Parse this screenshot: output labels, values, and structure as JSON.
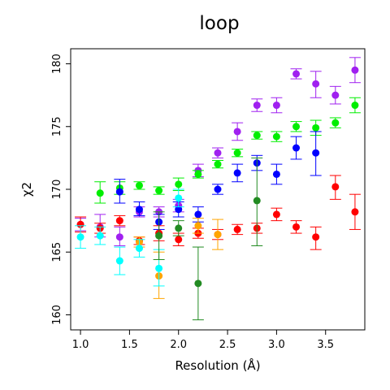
{
  "chart_data": {
    "type": "scatter",
    "title": "loop",
    "xlabel": "Resolution (Å)",
    "ylabel": "χ2",
    "xlim": [
      0.9,
      3.9
    ],
    "ylim": [
      158.8,
      181.2
    ],
    "xticks": [
      "1.0",
      "1.5",
      "2.0",
      "2.5",
      "3.0",
      "3.5"
    ],
    "xtick_values": [
      1.0,
      1.5,
      2.0,
      2.5,
      3.0,
      3.5
    ],
    "yticks": [
      "160",
      "165",
      "170",
      "175",
      "180"
    ],
    "ytick_values": [
      160,
      165,
      170,
      175,
      180
    ],
    "grid": false,
    "error_bars": true,
    "series": [
      {
        "color": "#a020f0",
        "points": [
          {
            "x": 1.0,
            "y": 167.2,
            "lo": 166.7,
            "hi": 167.7
          },
          {
            "x": 1.2,
            "y": 167.0,
            "lo": 166.2,
            "hi": 168.0
          },
          {
            "x": 1.4,
            "y": 166.2,
            "lo": 165.5,
            "hi": 167.0
          },
          {
            "x": 1.6,
            "y": 168.2,
            "lo": 167.8,
            "hi": 168.6
          },
          {
            "x": 1.8,
            "y": 168.2,
            "lo": 167.8,
            "hi": 168.6
          },
          {
            "x": 2.0,
            "y": 168.7,
            "lo": 168.2,
            "hi": 169.2
          },
          {
            "x": 2.2,
            "y": 171.5,
            "lo": 171.0,
            "hi": 172.0
          },
          {
            "x": 2.4,
            "y": 172.9,
            "lo": 172.5,
            "hi": 173.3
          },
          {
            "x": 2.6,
            "y": 174.6,
            "lo": 173.9,
            "hi": 175.3
          },
          {
            "x": 2.8,
            "y": 176.7,
            "lo": 176.2,
            "hi": 177.2
          },
          {
            "x": 3.0,
            "y": 176.7,
            "lo": 176.1,
            "hi": 177.3
          },
          {
            "x": 3.2,
            "y": 179.2,
            "lo": 178.8,
            "hi": 179.6
          },
          {
            "x": 3.4,
            "y": 178.4,
            "lo": 177.3,
            "hi": 179.4
          },
          {
            "x": 3.6,
            "y": 177.5,
            "lo": 176.8,
            "hi": 178.2
          },
          {
            "x": 3.8,
            "y": 179.5,
            "lo": 178.5,
            "hi": 180.5
          }
        ]
      },
      {
        "color": "#00ee00",
        "points": [
          {
            "x": 1.2,
            "y": 169.7,
            "lo": 168.9,
            "hi": 170.6
          },
          {
            "x": 1.4,
            "y": 170.1,
            "lo": 169.6,
            "hi": 170.6
          },
          {
            "x": 1.6,
            "y": 170.3,
            "lo": 170.0,
            "hi": 170.6
          },
          {
            "x": 1.8,
            "y": 169.9,
            "lo": 169.6,
            "hi": 170.2
          },
          {
            "x": 2.0,
            "y": 170.4,
            "lo": 169.9,
            "hi": 170.9
          },
          {
            "x": 2.2,
            "y": 171.2,
            "lo": 170.9,
            "hi": 171.5
          },
          {
            "x": 2.4,
            "y": 172.0,
            "lo": 171.7,
            "hi": 172.3
          },
          {
            "x": 2.6,
            "y": 172.9,
            "lo": 172.6,
            "hi": 173.2
          },
          {
            "x": 2.8,
            "y": 174.3,
            "lo": 174.0,
            "hi": 174.6
          },
          {
            "x": 3.0,
            "y": 174.2,
            "lo": 173.8,
            "hi": 174.6
          },
          {
            "x": 3.2,
            "y": 175.0,
            "lo": 174.6,
            "hi": 175.4
          },
          {
            "x": 3.4,
            "y": 174.9,
            "lo": 174.3,
            "hi": 175.5
          },
          {
            "x": 3.6,
            "y": 175.3,
            "lo": 174.9,
            "hi": 175.7
          },
          {
            "x": 3.8,
            "y": 176.7,
            "lo": 176.1,
            "hi": 177.3
          }
        ]
      },
      {
        "color": "#0000ff",
        "points": [
          {
            "x": 1.4,
            "y": 169.8,
            "lo": 168.9,
            "hi": 170.8
          },
          {
            "x": 1.6,
            "y": 168.4,
            "lo": 167.9,
            "hi": 169.0
          },
          {
            "x": 1.8,
            "y": 167.4,
            "lo": 166.8,
            "hi": 168.0
          },
          {
            "x": 2.0,
            "y": 168.4,
            "lo": 167.8,
            "hi": 169.0
          },
          {
            "x": 2.2,
            "y": 168.0,
            "lo": 167.4,
            "hi": 168.6
          },
          {
            "x": 2.4,
            "y": 170.0,
            "lo": 169.6,
            "hi": 170.4
          },
          {
            "x": 2.6,
            "y": 171.3,
            "lo": 170.6,
            "hi": 172.0
          },
          {
            "x": 2.8,
            "y": 172.1,
            "lo": 171.5,
            "hi": 172.7
          },
          {
            "x": 3.0,
            "y": 171.2,
            "lo": 170.4,
            "hi": 172.0
          },
          {
            "x": 3.2,
            "y": 173.3,
            "lo": 172.4,
            "hi": 174.2
          },
          {
            "x": 3.4,
            "y": 172.9,
            "lo": 171.1,
            "hi": 174.6
          }
        ]
      },
      {
        "color": "#ff0000",
        "points": [
          {
            "x": 1.0,
            "y": 167.2,
            "lo": 166.6,
            "hi": 167.8
          },
          {
            "x": 1.2,
            "y": 166.9,
            "lo": 166.5,
            "hi": 167.3
          },
          {
            "x": 1.4,
            "y": 167.5,
            "lo": 167.1,
            "hi": 167.9
          },
          {
            "x": 1.6,
            "y": 165.9,
            "lo": 165.6,
            "hi": 166.2
          },
          {
            "x": 1.8,
            "y": 166.5,
            "lo": 165.9,
            "hi": 167.1
          },
          {
            "x": 2.0,
            "y": 166.0,
            "lo": 165.5,
            "hi": 166.5
          },
          {
            "x": 2.2,
            "y": 166.5,
            "lo": 166.1,
            "hi": 166.9
          },
          {
            "x": 2.4,
            "y": 166.4,
            "lo": 166.0,
            "hi": 166.8
          },
          {
            "x": 2.6,
            "y": 166.8,
            "lo": 166.4,
            "hi": 167.2
          },
          {
            "x": 2.8,
            "y": 166.9,
            "lo": 166.5,
            "hi": 167.3
          },
          {
            "x": 3.0,
            "y": 168.0,
            "lo": 167.5,
            "hi": 168.5
          },
          {
            "x": 3.2,
            "y": 167.0,
            "lo": 166.5,
            "hi": 167.5
          },
          {
            "x": 3.4,
            "y": 166.2,
            "lo": 165.2,
            "hi": 167.0
          },
          {
            "x": 3.6,
            "y": 170.2,
            "lo": 169.2,
            "hi": 171.1
          },
          {
            "x": 3.8,
            "y": 168.2,
            "lo": 166.8,
            "hi": 169.6
          }
        ]
      },
      {
        "color": "#ffa500",
        "points": [
          {
            "x": 1.6,
            "y": 165.8,
            "lo": 165.4,
            "hi": 166.2
          },
          {
            "x": 1.8,
            "y": 163.1,
            "lo": 161.3,
            "hi": 165.0
          },
          {
            "x": 2.2,
            "y": 167.1,
            "lo": 166.5,
            "hi": 167.7
          },
          {
            "x": 2.4,
            "y": 166.4,
            "lo": 165.2,
            "hi": 167.6
          }
        ]
      },
      {
        "color": "#00ffff",
        "points": [
          {
            "x": 1.0,
            "y": 166.2,
            "lo": 165.3,
            "hi": 167.1
          },
          {
            "x": 1.2,
            "y": 166.3,
            "lo": 165.6,
            "hi": 167.0
          },
          {
            "x": 1.4,
            "y": 164.3,
            "lo": 163.2,
            "hi": 165.4
          },
          {
            "x": 1.6,
            "y": 165.3,
            "lo": 164.6,
            "hi": 166.0
          },
          {
            "x": 1.8,
            "y": 163.7,
            "lo": 162.3,
            "hi": 165.2
          },
          {
            "x": 2.0,
            "y": 169.3,
            "lo": 168.6,
            "hi": 170.0
          }
        ]
      },
      {
        "color": "#228b22",
        "points": [
          {
            "x": 1.8,
            "y": 166.3,
            "lo": 164.4,
            "hi": 168.2
          },
          {
            "x": 2.0,
            "y": 166.9,
            "lo": 166.3,
            "hi": 167.5
          },
          {
            "x": 2.2,
            "y": 162.5,
            "lo": 159.6,
            "hi": 165.4
          },
          {
            "x": 2.8,
            "y": 169.1,
            "lo": 165.5,
            "hi": 172.5
          }
        ]
      }
    ]
  }
}
